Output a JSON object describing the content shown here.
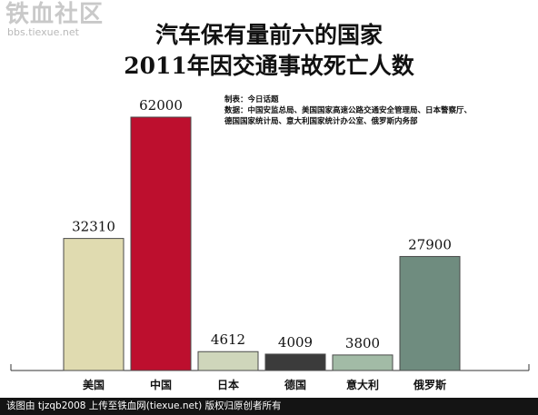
{
  "watermark": {
    "main": "铁血社区",
    "sub": "bbs.tiexue.net"
  },
  "title_lines": [
    "汽车保有量前六的国家",
    "2011年因交通事故死亡人数"
  ],
  "notes": [
    "制表：今日话题",
    "数据：中国安监总局、美国国家高速公路交通安全管理局、日本警察厅、",
    "德国国家统计局、意大利国家统计办公室、俄罗斯内务部"
  ],
  "footer": "该图由 tjzqb2008 上传至铁血网(tiexue.net) 版权归原创者所有",
  "chart_data": {
    "type": "bar",
    "title": "汽车保有量前六的国家 2011年因交通事故死亡人数",
    "categories": [
      "美国",
      "中国",
      "日本",
      "德国",
      "意大利",
      "俄罗斯"
    ],
    "values": [
      32310,
      62000,
      4612,
      4009,
      3800,
      27900
    ],
    "data_labels": [
      "32310",
      "62000",
      "4612",
      "4009",
      "3800",
      "27900"
    ],
    "colors": [
      "#e0dbb0",
      "#bd0f2e",
      "#cfd6bb",
      "#3b3b3b",
      "#a2bba6",
      "#6f8c7f"
    ],
    "ylim": [
      0,
      62000
    ],
    "grid": false,
    "xlabel": "",
    "ylabel": ""
  }
}
